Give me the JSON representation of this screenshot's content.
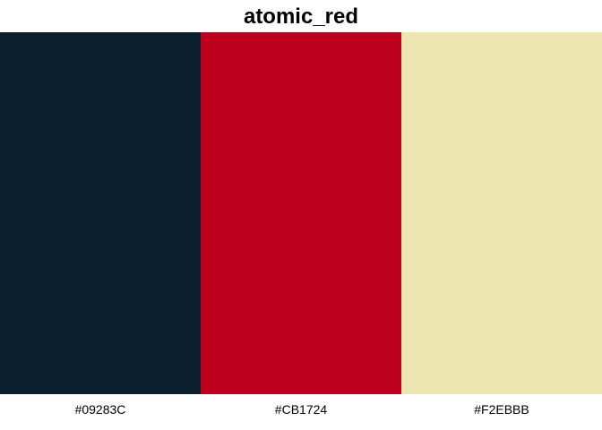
{
  "chart_data": {
    "type": "bar",
    "title": "atomic_red",
    "xlabel": "",
    "ylabel": "",
    "categories": [
      "#09283C",
      "#CB1724",
      "#F2EBBB"
    ],
    "values": [
      1,
      1,
      1
    ],
    "colors": [
      "#0B1F2E",
      "#BD001E",
      "#EDE5AF"
    ],
    "grid": false,
    "legend": "none"
  }
}
